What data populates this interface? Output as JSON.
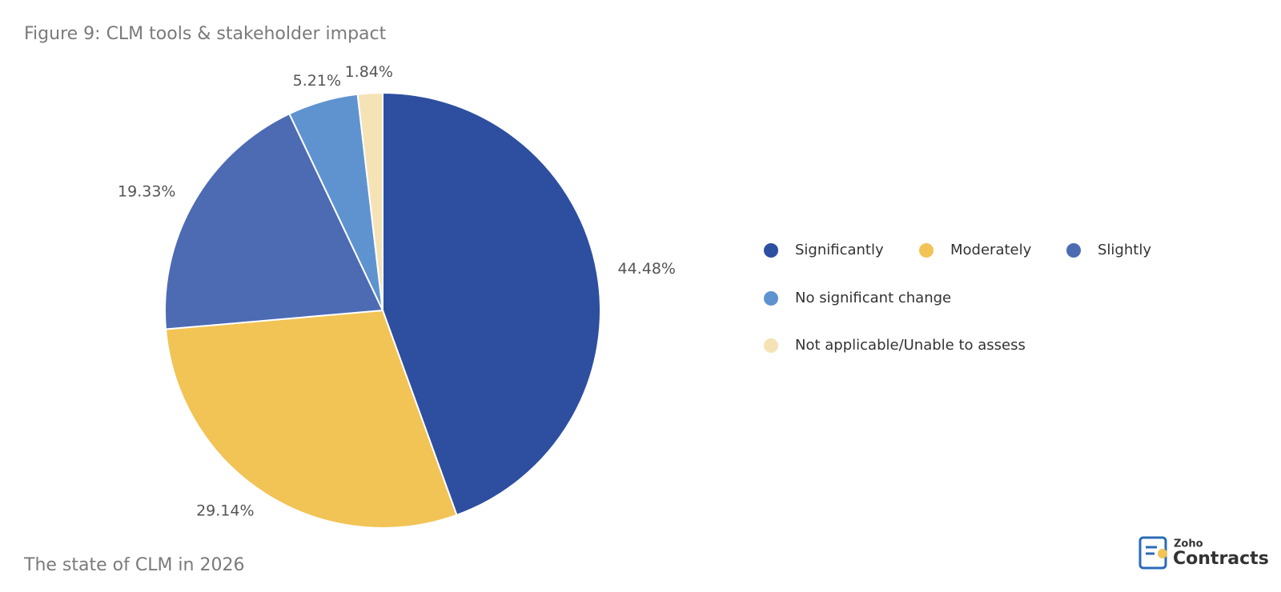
{
  "chart_data": {
    "type": "pie",
    "title": "Figure 9: CLM tools & stakeholder impact",
    "categories": [
      "Significantly",
      "Moderately",
      "Slightly",
      "No significant change",
      "Not applicable/Unable to assess"
    ],
    "values": [
      44.48,
      29.14,
      19.33,
      5.21,
      1.84
    ],
    "value_labels": [
      "44.48%",
      "29.14%",
      "19.33%",
      "5.21%",
      "1.84%"
    ],
    "colors": [
      "#2e4fa0",
      "#f2c355",
      "#4c6bb3",
      "#5f93d0",
      "#f5e3b5"
    ],
    "legend": "right"
  },
  "footer": "The state of CLM in 2026",
  "logo": {
    "brand": "Zoho",
    "product": "Contracts"
  }
}
